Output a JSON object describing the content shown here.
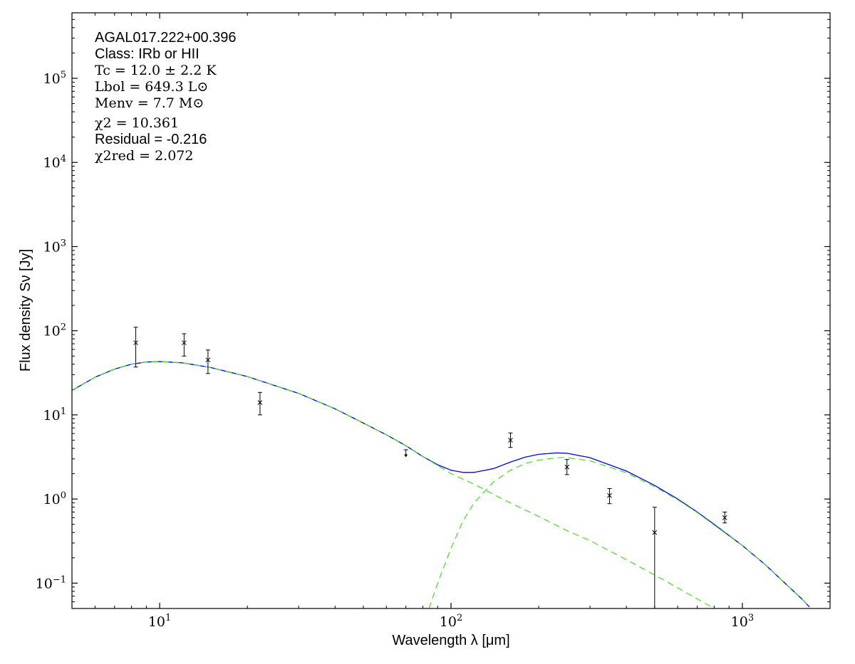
{
  "chart_data": {
    "type": "scatter",
    "title": "",
    "xlabel": "Wavelength λ [μm]",
    "ylabel": "Flux density Sν [Jy]",
    "xscale": "log",
    "yscale": "log",
    "xlim": [
      5,
      2000
    ],
    "ylim": [
      0.05,
      600000
    ],
    "grid": false,
    "x_ticks": [
      {
        "value": 10,
        "base": "10",
        "exp": "1"
      },
      {
        "value": 100,
        "base": "10",
        "exp": "2"
      },
      {
        "value": 1000,
        "base": "10",
        "exp": "3"
      }
    ],
    "y_ticks": [
      {
        "value": 0.1,
        "base": "10",
        "exp": "−1"
      },
      {
        "value": 1,
        "base": "10",
        "exp": "0"
      },
      {
        "value": 10,
        "base": "10",
        "exp": "1"
      },
      {
        "value": 100,
        "base": "10",
        "exp": "2"
      },
      {
        "value": 1000,
        "base": "10",
        "exp": "3"
      },
      {
        "value": 10000,
        "base": "10",
        "exp": "4"
      },
      {
        "value": 100000,
        "base": "10",
        "exp": "5"
      }
    ],
    "annotations": [
      {
        "text": "AGAL017.222+00.396",
        "style": "sans"
      },
      {
        "text": "Class: IRb or HII",
        "style": "sans"
      },
      {
        "text": "Tc = 12.0 ± 2.2 K",
        "style": "math"
      },
      {
        "text": "Lbol = 649.3 L⊙",
        "style": "math"
      },
      {
        "text": "Menv = 7.7 M⊙",
        "style": "math"
      },
      {
        "text": "χ2 = 10.361",
        "style": "math"
      },
      {
        "text": "Residual = -0.216",
        "style": "sans"
      },
      {
        "text": "χ2red = 2.072",
        "style": "math"
      }
    ],
    "series": [
      {
        "kind": "points",
        "marker": "x",
        "color": "#000000",
        "points": [
          {
            "x": 8.28,
            "y": 72,
            "lo": 37,
            "hi": 110
          },
          {
            "x": 12.13,
            "y": 72,
            "lo": 50,
            "hi": 92
          },
          {
            "x": 14.65,
            "y": 45,
            "lo": 31,
            "hi": 59
          },
          {
            "x": 22.1,
            "y": 14,
            "lo": 10,
            "hi": 18.5
          },
          {
            "x": 160,
            "y": 5.0,
            "lo": 4.1,
            "hi": 6.1
          },
          {
            "x": 250,
            "y": 2.4,
            "lo": 1.95,
            "hi": 2.95
          },
          {
            "x": 350,
            "y": 1.1,
            "lo": 0.88,
            "hi": 1.33
          },
          {
            "x": 500,
            "y": 0.4,
            "lo": 0.05,
            "hi": 0.8
          },
          {
            "x": 870,
            "y": 0.6,
            "lo": 0.52,
            "hi": 0.7
          }
        ]
      },
      {
        "kind": "upper_limit",
        "color": "#000000",
        "points": [
          {
            "x": 70,
            "y": 3.85,
            "limit_to": 3.2
          }
        ]
      },
      {
        "kind": "line",
        "style": "solid",
        "color": "#0000ff",
        "points": [
          [
            5,
            19.5
          ],
          [
            6,
            28
          ],
          [
            7,
            35
          ],
          [
            8,
            40
          ],
          [
            9,
            42.5
          ],
          [
            10,
            43
          ],
          [
            12,
            41.5
          ],
          [
            15,
            36.5
          ],
          [
            20,
            28.5
          ],
          [
            30,
            18
          ],
          [
            40,
            11.8
          ],
          [
            50,
            8
          ],
          [
            60,
            5.8
          ],
          [
            70,
            4.3
          ],
          [
            80,
            3.2
          ],
          [
            90,
            2.55
          ],
          [
            100,
            2.2
          ],
          [
            110,
            2.07
          ],
          [
            120,
            2.07
          ],
          [
            140,
            2.3
          ],
          [
            160,
            2.75
          ],
          [
            180,
            3.15
          ],
          [
            200,
            3.4
          ],
          [
            230,
            3.53
          ],
          [
            250,
            3.5
          ],
          [
            300,
            3.1
          ],
          [
            400,
            2.15
          ],
          [
            500,
            1.45
          ],
          [
            600,
            1.0
          ],
          [
            700,
            0.7
          ],
          [
            800,
            0.5
          ],
          [
            1000,
            0.28
          ],
          [
            1200,
            0.165
          ],
          [
            1400,
            0.1
          ],
          [
            1600,
            0.065
          ],
          [
            1700,
            0.052
          ]
        ]
      },
      {
        "kind": "line",
        "style": "dashed",
        "color": "#44dd22",
        "points": [
          [
            5,
            19.5
          ],
          [
            6,
            28
          ],
          [
            7,
            35
          ],
          [
            8,
            40
          ],
          [
            9,
            42.5
          ],
          [
            10,
            43
          ],
          [
            12,
            41.5
          ],
          [
            15,
            36.5
          ],
          [
            20,
            28.5
          ],
          [
            30,
            18
          ],
          [
            40,
            11.8
          ],
          [
            50,
            8
          ],
          [
            60,
            5.8
          ],
          [
            70,
            4.3
          ],
          [
            80,
            3.2
          ],
          [
            90,
            2.5
          ],
          [
            100,
            2.0
          ],
          [
            120,
            1.5
          ],
          [
            150,
            1.0
          ],
          [
            200,
            0.62
          ],
          [
            250,
            0.42
          ],
          [
            300,
            0.32
          ],
          [
            400,
            0.19
          ],
          [
            500,
            0.125
          ],
          [
            600,
            0.088
          ],
          [
            700,
            0.065
          ],
          [
            800,
            0.05
          ]
        ]
      },
      {
        "kind": "line",
        "style": "dashed",
        "color": "#44dd22",
        "points": [
          [
            84,
            0.05
          ],
          [
            90,
            0.1
          ],
          [
            100,
            0.26
          ],
          [
            110,
            0.55
          ],
          [
            120,
            0.9
          ],
          [
            140,
            1.6
          ],
          [
            160,
            2.2
          ],
          [
            180,
            2.65
          ],
          [
            200,
            2.9
          ],
          [
            230,
            3.1
          ],
          [
            250,
            3.1
          ],
          [
            300,
            2.85
          ],
          [
            400,
            2.05
          ],
          [
            500,
            1.4
          ],
          [
            600,
            0.98
          ],
          [
            700,
            0.69
          ],
          [
            800,
            0.49
          ],
          [
            1000,
            0.28
          ],
          [
            1200,
            0.165
          ],
          [
            1400,
            0.1
          ],
          [
            1600,
            0.065
          ],
          [
            1700,
            0.052
          ]
        ]
      }
    ]
  }
}
